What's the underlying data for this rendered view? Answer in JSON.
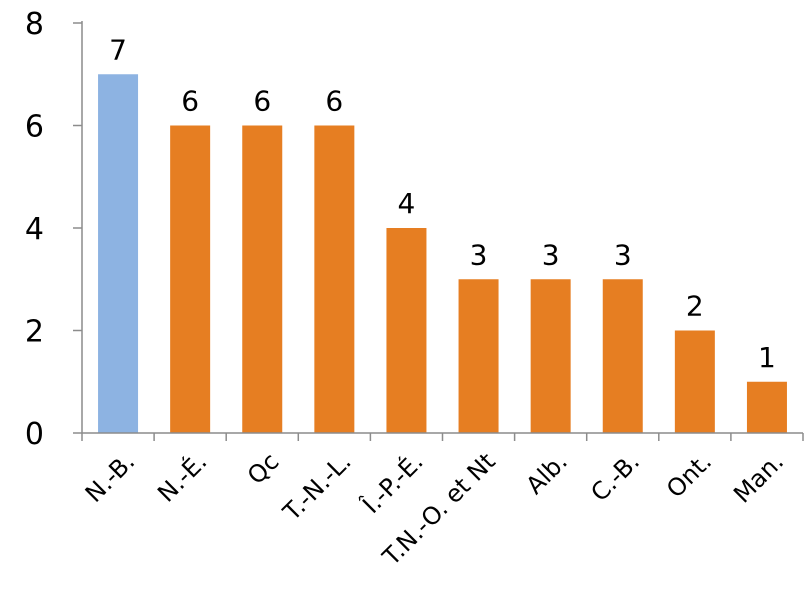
{
  "chart_data": {
    "type": "bar",
    "categories": [
      "N.-B.",
      "N.-É.",
      "Qc",
      "T.-N.-L.",
      "Î.-P.-É.",
      "T.N.-O. et Nt",
      "Alb.",
      "C.-B.",
      "Ont.",
      "Man."
    ],
    "values": [
      7,
      6,
      6,
      6,
      4,
      3,
      3,
      3,
      2,
      1
    ],
    "highlight_index": 0,
    "colors": {
      "highlight": "#8db3e2",
      "default": "#e67e22",
      "axis": "#8c8c8c"
    },
    "ylim": [
      0,
      8
    ],
    "yticks": [
      "0",
      "2",
      "4",
      "6",
      "8"
    ],
    "title": "",
    "xlabel": "",
    "ylabel": "",
    "grid": false,
    "legend": false
  }
}
